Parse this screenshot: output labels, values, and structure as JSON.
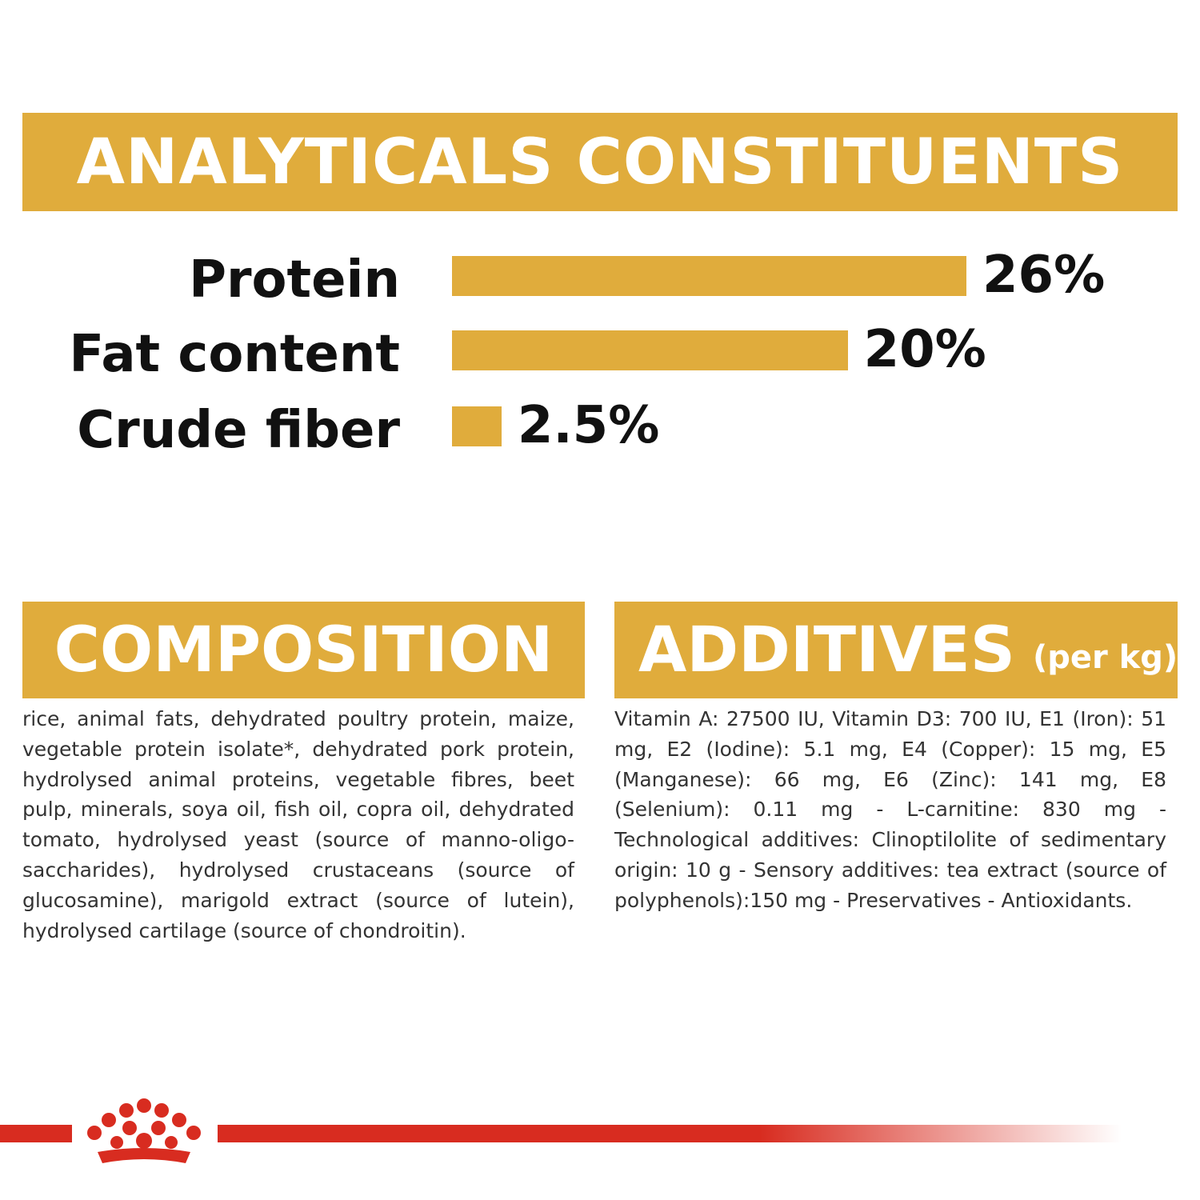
{
  "headers": {
    "analytical": "ANALYTICALS CONSTITUENTS",
    "composition": "COMPOSITION",
    "additives": "ADDITIVES",
    "additives_sub": "(per kg)"
  },
  "chart_data": {
    "type": "bar",
    "orientation": "horizontal",
    "title": "ANALYTICALS CONSTITUENTS",
    "categories": [
      "Protein",
      "Fat content",
      "Crude fiber"
    ],
    "values": [
      26,
      20,
      2.5
    ],
    "value_labels": [
      "26%",
      "20%",
      "2.5%"
    ],
    "unit": "%",
    "bar_color": "#e0ac3c",
    "grid": false,
    "legend": "none"
  },
  "composition_text": "rice, animal fats, dehydrated poultry protein, maize, vegetable protein isolate*, dehydrated pork protein, hydrolysed animal proteins, vegetable fibres, beet pulp, minerals, soya oil, fish oil, copra oil, dehydrated tomato, hydrolysed yeast (source of manno-oligo-saccharides), hydrolysed crustaceans (source of glucosamine), marigold extract (source of lutein), hydrolysed cartilage (source of chondroitin).",
  "additives_text": "Vitamin A: 27500 IU, Vitamin D3: 700 IU, E1 (Iron): 51 mg, E2 (Iodine): 5.1 mg, E4 (Copper): 15 mg, E5 (Manganese): 66 mg, E6 (Zinc): 141 mg, E8 (Selenium): 0.11 mg - L-carnitine: 830 mg - Technological additives: Clinoptilolite of sedimentary origin: 10 g - Sensory additives: tea extract (source of polyphenols):150 mg - Preservatives - Antioxidants.",
  "colors": {
    "accent": "#e0ac3c",
    "brand_red": "#d82c20",
    "text": "#111111"
  },
  "icons": {
    "brand_logo": "crown-logo-icon"
  }
}
